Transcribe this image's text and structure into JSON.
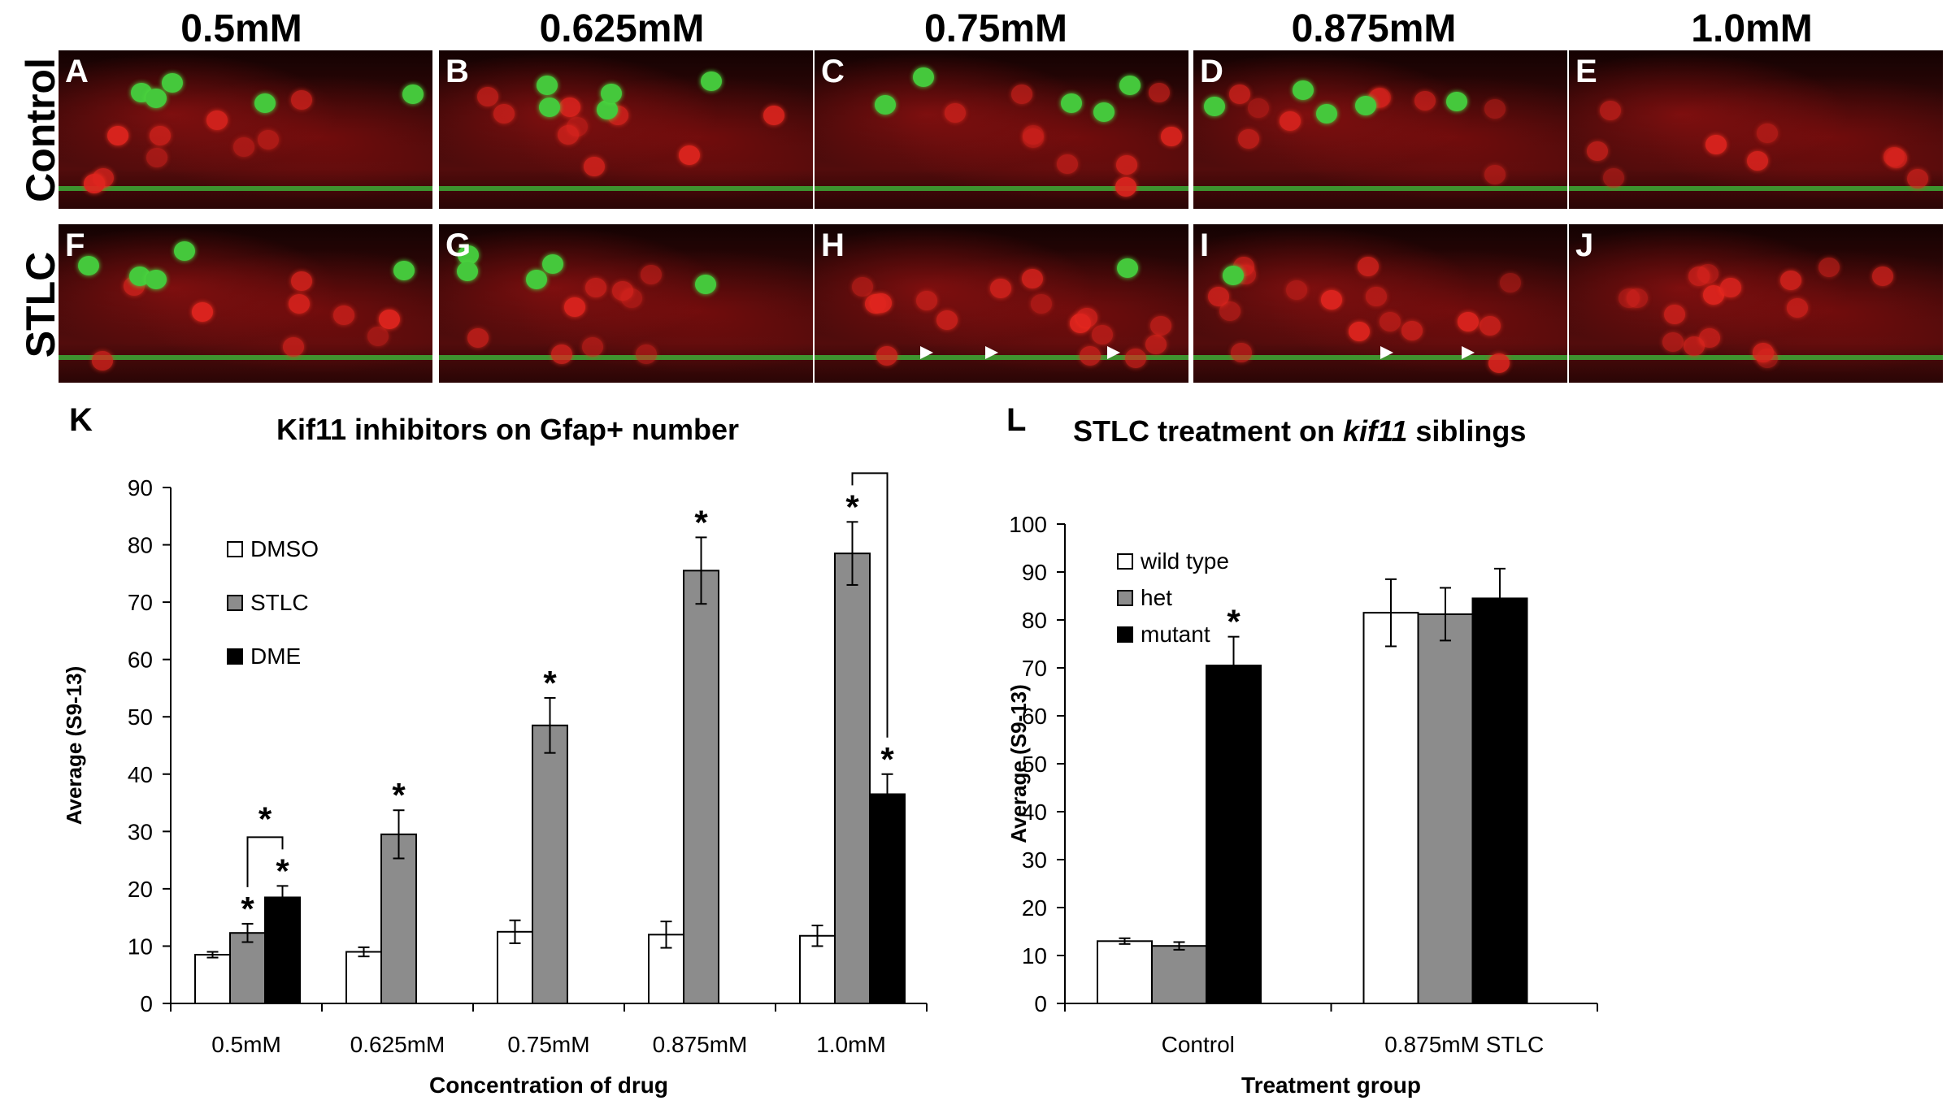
{
  "concentrations": [
    "0.5mM",
    "0.625mM",
    "0.75mM",
    "0.875mM",
    "1.0mM"
  ],
  "row_labels": [
    "Control",
    "STLC"
  ],
  "panel_letters": [
    "A",
    "B",
    "C",
    "D",
    "E",
    "F",
    "G",
    "H",
    "I",
    "J"
  ],
  "figure_letters": {
    "k": "K",
    "l": "L"
  },
  "colors": {
    "red_stain": "#e0251f",
    "green_stain": "#45c83c",
    "dmso": "#ffffff",
    "stlc": "#8c8c8c",
    "dme": "#000000"
  },
  "chart_data": [
    {
      "type": "bar",
      "title": "Kif11 inhibitors on Gfap+ number",
      "xlabel": "Concentration of drug",
      "ylabel": "Average (S9-13)",
      "ylim": [
        0,
        90
      ],
      "yticks": [
        0,
        10,
        20,
        30,
        40,
        50,
        60,
        70,
        80,
        90
      ],
      "categories": [
        "0.5mM",
        "0.625mM",
        "0.75mM",
        "0.875mM",
        "1.0mM"
      ],
      "legend_position": "top-left",
      "series": [
        {
          "name": "DMSO",
          "color": "#ffffff",
          "values": [
            8.5,
            9.0,
            12.5,
            12.0,
            11.8
          ],
          "errors": [
            0.5,
            0.8,
            2.0,
            2.3,
            1.8
          ]
        },
        {
          "name": "STLC",
          "color": "#8c8c8c",
          "values": [
            12.3,
            29.5,
            48.5,
            75.5,
            78.5
          ],
          "errors": [
            1.6,
            4.2,
            4.8,
            5.8,
            5.5
          ]
        },
        {
          "name": "DME",
          "color": "#000000",
          "values": [
            18.5,
            null,
            null,
            null,
            36.5
          ],
          "errors": [
            2.0,
            null,
            null,
            null,
            3.5
          ]
        }
      ],
      "significance": [
        {
          "category": 0,
          "series": 1,
          "label": "*"
        },
        {
          "category": 0,
          "series": 2,
          "label": "*"
        },
        {
          "category": 1,
          "series": 1,
          "label": "*"
        },
        {
          "category": 2,
          "series": 1,
          "label": "*"
        },
        {
          "category": 3,
          "series": 1,
          "label": "*"
        },
        {
          "category": 4,
          "series": 1,
          "label": "*"
        },
        {
          "category": 4,
          "series": 2,
          "label": "*"
        }
      ],
      "brackets": [
        {
          "category": 0,
          "from": 1,
          "to": 2,
          "label": "*"
        },
        {
          "category": 4,
          "from": 1,
          "to": 2,
          "label": "*"
        }
      ]
    },
    {
      "type": "bar",
      "title_prefix": "STLC treatment on ",
      "title_italic": "kif11",
      "title_suffix": " siblings",
      "xlabel": "Treatment group",
      "ylabel": "Average (S9-13)",
      "ylim": [
        0,
        100
      ],
      "yticks": [
        0,
        10,
        20,
        30,
        40,
        50,
        60,
        70,
        80,
        90,
        100
      ],
      "categories": [
        "Control",
        "0.875mM STLC"
      ],
      "legend_position": "top-left",
      "series": [
        {
          "name": "wild type",
          "color": "#ffffff",
          "values": [
            13.0,
            81.5
          ],
          "errors": [
            0.6,
            7.0
          ]
        },
        {
          "name": "het",
          "color": "#8c8c8c",
          "values": [
            12.0,
            81.2
          ],
          "errors": [
            0.8,
            5.5
          ]
        },
        {
          "name": "mutant",
          "color": "#000000",
          "values": [
            70.5,
            84.5
          ],
          "errors": [
            6.0,
            6.2
          ]
        }
      ],
      "significance": [
        {
          "category": 0,
          "series": 2,
          "label": "*"
        }
      ]
    }
  ]
}
